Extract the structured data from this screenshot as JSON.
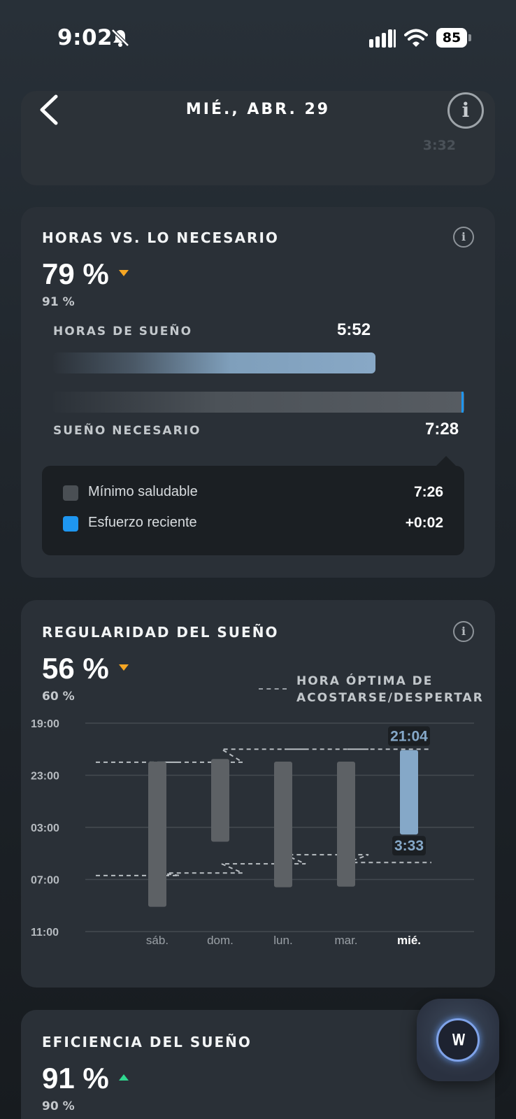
{
  "status_bar": {
    "time": "9:02",
    "battery": "85"
  },
  "nav": {
    "title": "MIÉ., ABR. 29",
    "info_glyph": "i"
  },
  "top_card": {
    "faded_value": "3:32"
  },
  "need_card": {
    "title": "HORAS VS. LO NECESARIO",
    "percent": "79 %",
    "trend": "down",
    "previous": "91 %",
    "hours_label": "HORAS DE SUEÑO",
    "hours_value": "5:52",
    "hours_fraction": 0.784,
    "need_label": "SUEÑO NECESARIO",
    "need_value": "7:28",
    "legend": [
      {
        "label": "Mínimo saludable",
        "value": "7:26",
        "color": "#4a4f54"
      },
      {
        "label": "Esfuerzo reciente",
        "value": "+0:02",
        "color": "#1e96f0"
      }
    ]
  },
  "regularity_card": {
    "title": "REGULARIDAD DEL SUEÑO",
    "percent": "56 %",
    "trend": "down",
    "previous": "60 %",
    "legend_line1": "HORA ÓPTIMA DE",
    "legend_line2": "ACOSTARSE/DESPERTAR"
  },
  "chart_data": {
    "type": "bar",
    "title": "",
    "y_tick_labels": [
      "19:00",
      "23:00",
      "03:00",
      "07:00",
      "11:00"
    ],
    "y_ticks_hours_after_19": [
      0,
      4,
      8,
      12,
      16
    ],
    "categories": [
      "sáb.",
      "dom.",
      "lun.",
      "mar.",
      "mié."
    ],
    "series": [
      {
        "bed": [
          21.95,
          21.75,
          21.95,
          21.95,
          21.07
        ],
        "wake": [
          33.1,
          28.1,
          31.6,
          31.55,
          27.55
        ]
      }
    ],
    "optimal_bed": [
      22.0,
      22.0,
      21.0,
      21.0,
      21.0
    ],
    "optimal_wake": [
      30.7,
      30.5,
      29.8,
      29.1,
      29.7
    ],
    "highlight_index": 4,
    "highlight_bed_label": "21:04",
    "highlight_wake_label": "3:33",
    "colors": {
      "bar": "#5d6165",
      "highlight": "#85a8c8",
      "grid": "#444a50",
      "optimal": "#b8bdc2"
    }
  },
  "efficiency_card": {
    "title": "EFICIENCIA DEL SUEÑO",
    "percent": "91 %",
    "trend": "up",
    "previous": "90 %"
  },
  "fab": {
    "label": "\\/\\/"
  }
}
